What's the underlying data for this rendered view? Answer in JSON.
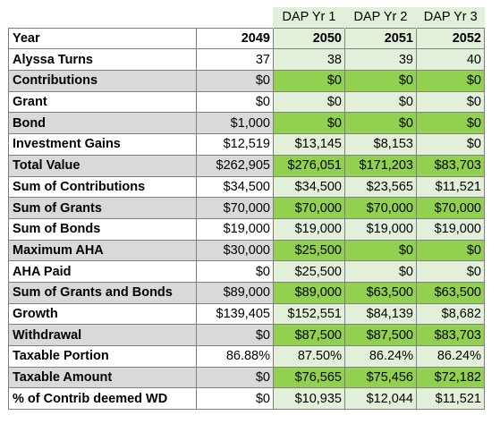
{
  "header": {
    "dap_labels": [
      "DAP Yr 1",
      "DAP Yr 2",
      "DAP Yr 3"
    ]
  },
  "rows": [
    {
      "label": "Year",
      "values": [
        "2049",
        "2050",
        "2051",
        "2052"
      ]
    },
    {
      "label": "Alyssa Turns",
      "values": [
        "37",
        "38",
        "39",
        "40"
      ]
    },
    {
      "label": "Contributions",
      "values": [
        "$0",
        "$0",
        "$0",
        "$0"
      ]
    },
    {
      "label": "Grant",
      "values": [
        "$0",
        "$0",
        "$0",
        "$0"
      ]
    },
    {
      "label": "Bond",
      "values": [
        "$1,000",
        "$0",
        "$0",
        "$0"
      ]
    },
    {
      "label": "Investment Gains",
      "values": [
        "$12,519",
        "$13,145",
        "$8,153",
        "$0"
      ]
    },
    {
      "label": "Total Value",
      "values": [
        "$262,905",
        "$276,051",
        "$171,203",
        "$83,703"
      ]
    },
    {
      "label": "Sum of Contributions",
      "values": [
        "$34,500",
        "$34,500",
        "$23,565",
        "$11,521"
      ]
    },
    {
      "label": "Sum of Grants",
      "values": [
        "$70,000",
        "$70,000",
        "$70,000",
        "$70,000"
      ]
    },
    {
      "label": "Sum of Bonds",
      "values": [
        "$19,000",
        "$19,000",
        "$19,000",
        "$19,000"
      ]
    },
    {
      "label": "Maximum AHA",
      "values": [
        "$30,000",
        "$25,500",
        "$0",
        "$0"
      ]
    },
    {
      "label": "AHA Paid",
      "values": [
        "$0",
        "$25,500",
        "$0",
        "$0"
      ]
    },
    {
      "label": "Sum of Grants and Bonds",
      "values": [
        "$89,000",
        "$89,000",
        "$63,500",
        "$63,500"
      ]
    },
    {
      "label": "Growth",
      "values": [
        "$139,405",
        "$152,551",
        "$84,139",
        "$8,682"
      ]
    },
    {
      "label": "Withdrawal",
      "values": [
        "$0",
        "$87,500",
        "$87,500",
        "$83,703"
      ]
    },
    {
      "label": "Taxable Portion",
      "values": [
        "86.88%",
        "87.50%",
        "86.24%",
        "86.24%"
      ]
    },
    {
      "label": "Taxable Amount",
      "values": [
        "$0",
        "$76,565",
        "$75,456",
        "$72,182"
      ]
    },
    {
      "label": "% of Contrib deemed WD",
      "values": [
        "$0",
        "$10,935",
        "$12,044",
        "$11,521"
      ]
    }
  ],
  "colors": {
    "grey_row": "#d9d9d9",
    "green_dark": "#92d050",
    "green_light": "#e2efd9",
    "border": "#7f7f7f"
  }
}
